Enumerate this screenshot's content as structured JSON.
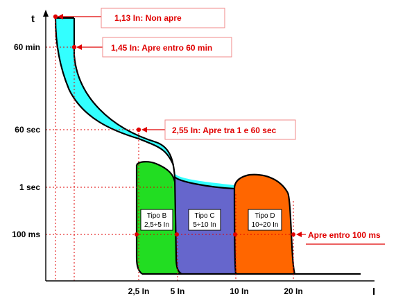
{
  "axes": {
    "y_label": "t",
    "x_label": "I",
    "y_ticks": [
      "60 min",
      "60 sec",
      "1 sec",
      "100 ms"
    ],
    "x_ticks": [
      "2,5 In",
      "5 In",
      "10 In",
      "20 In"
    ]
  },
  "callouts": {
    "non_apre": "1,13 In: Non apre",
    "apre_60min": "1,45 In: Apre entro 60 min",
    "apre_1_60sec": "2,55 In: Apre tra 1 e 60 sec",
    "apre_100ms": "Apre entro 100 ms"
  },
  "zones": {
    "tipo_b": {
      "name": "Tipo B",
      "range": "2,5÷5 In",
      "color": "#22dd22"
    },
    "tipo_c": {
      "name": "Tipo C",
      "range": "5÷10 In",
      "color": "#6666cc"
    },
    "tipo_d": {
      "name": "Tipo D",
      "range": "10÷20 In",
      "color": "#ff6600"
    },
    "thermal_band": {
      "color": "#33ffff"
    }
  }
}
